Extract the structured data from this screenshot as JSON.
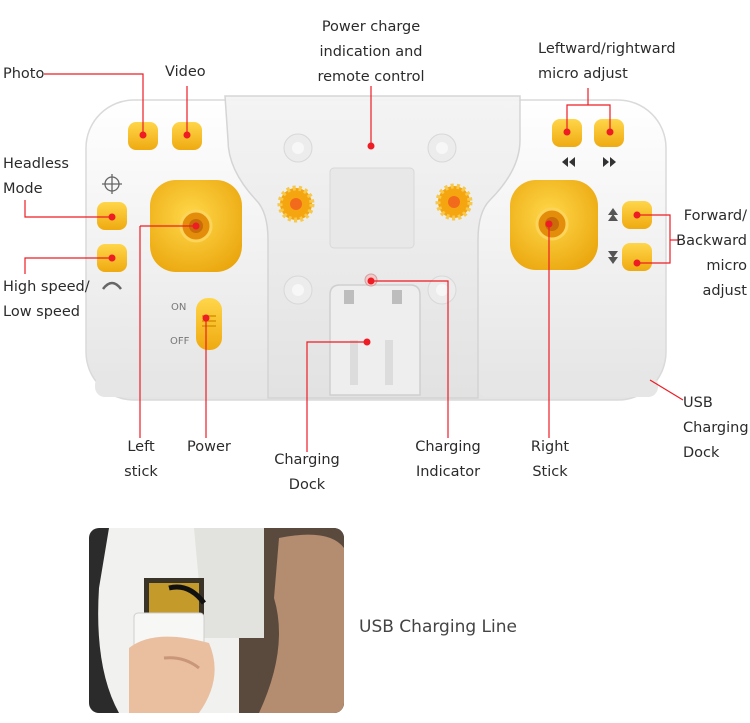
{
  "labels": {
    "photo": "Photo",
    "video": "Video",
    "power_charge": [
      "Power charge",
      "indication and",
      "remote control"
    ],
    "micro_lr": [
      "Leftward/rightward",
      "micro adjust"
    ],
    "headless": [
      "Headless",
      "Mode"
    ],
    "speed": [
      "High speed/",
      "Low speed"
    ],
    "fb": [
      "Forward/",
      "Backward",
      "micro",
      "adjust"
    ],
    "usb_dock": [
      "USB",
      "Charging",
      "Dock"
    ],
    "left_stick": [
      "Left",
      "stick"
    ],
    "power": "Power",
    "dock": [
      "Charging",
      "Dock"
    ],
    "indicator": [
      "Charging",
      "Indicator"
    ],
    "right_stick": [
      "Right",
      "Stick"
    ]
  },
  "switch": {
    "on": "ON",
    "off": "OFF"
  },
  "caption": "USB Charging Line",
  "colors": {
    "callout": "#ee1c24",
    "button_yellow": "#f7c21a",
    "stick_pad": "#f3b414",
    "body": "#f2f2f2"
  },
  "icons": [
    "compass-icon",
    "turtle-icon",
    "rewind-icon",
    "fast-forward-icon",
    "arrow-up-icon",
    "arrow-down-icon"
  ]
}
